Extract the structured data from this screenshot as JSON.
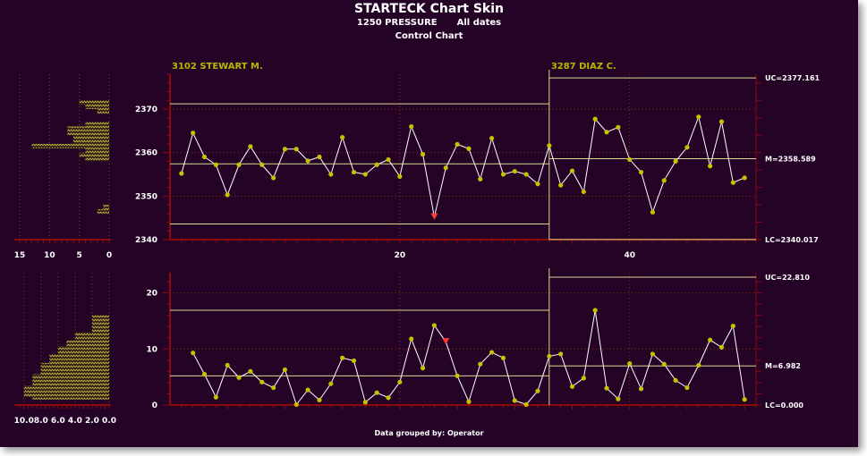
{
  "title": "STARTECK Chart Skin",
  "subtitle_left": "1250 PRESSURE",
  "subtitle_right": "All dates",
  "chart_name": "Control Chart",
  "footer": "Data grouped by: Operator",
  "colors": {
    "background": "#240326",
    "data_line": "#ffffff",
    "data_point": "#c8c000",
    "limit_line": "#d8d890",
    "axis": "#8b0a0a",
    "grid": "#8b3a0a",
    "label_text": "#ffffff",
    "group_label": "#b8b800",
    "alarm": "#ff3b3b"
  },
  "chart_data": [
    {
      "type": "line",
      "name": "X chart",
      "groups": [
        {
          "label": "3102 STEWART M.",
          "start": 1,
          "end": 33,
          "ucl": 2371.2,
          "center": 2357.4,
          "lcl": 2343.6
        },
        {
          "label": "3287 DIAZ C.",
          "start": 33,
          "end": 50,
          "ucl": 2377.161,
          "center": 2358.589,
          "lcl": 2340.017
        }
      ],
      "x": [
        1,
        2,
        3,
        4,
        5,
        6,
        7,
        8,
        9,
        10,
        11,
        12,
        13,
        14,
        15,
        16,
        17,
        18,
        19,
        20,
        21,
        22,
        23,
        24,
        25,
        26,
        27,
        28,
        29,
        30,
        31,
        32,
        33,
        34,
        35,
        36,
        37,
        38,
        39,
        40,
        41,
        42,
        43,
        44,
        45,
        46,
        47,
        48,
        49,
        50
      ],
      "values": [
        2355.2,
        2364.5,
        2359.0,
        2357.2,
        2350.3,
        2357.2,
        2361.4,
        2357.2,
        2354.2,
        2360.8,
        2360.8,
        2358.1,
        2359.0,
        2355.0,
        2363.5,
        2355.5,
        2355.0,
        2357.2,
        2358.4,
        2354.5,
        2366.0,
        2359.6,
        2345.2,
        2356.5,
        2361.9,
        2360.9,
        2353.9,
        2363.3,
        2355.0,
        2355.7,
        2355.0,
        2352.8,
        2361.6,
        2352.5,
        2355.8,
        2351.0,
        2367.7,
        2364.7,
        2365.8,
        2358.4,
        2355.5,
        2346.3,
        2353.6,
        2358.0,
        2361.2,
        2368.2,
        2356.9,
        2367.1,
        2353.1,
        2354.2
      ],
      "alarms": [
        23
      ],
      "ylim": [
        2340,
        2378
      ],
      "xlim": [
        0,
        51
      ],
      "yticks": [
        2340,
        2350,
        2360,
        2370
      ],
      "xticks": [
        20,
        40
      ],
      "right_labels": [
        "UC=2377.161",
        "M=2358.589",
        "LC=2340.017"
      ],
      "histogram": {
        "bin_min": 2346,
        "bin_max": 2372,
        "counts": [
          2,
          1,
          0,
          0,
          0,
          0,
          0,
          0,
          0,
          0,
          0,
          0,
          4,
          5,
          4,
          13,
          6,
          6,
          7,
          7,
          4,
          0,
          0,
          2,
          4,
          5
        ],
        "xlim": [
          0,
          15
        ],
        "xticks": [
          15,
          10,
          5,
          0
        ]
      }
    },
    {
      "type": "line",
      "name": "MR chart",
      "groups": [
        {
          "label": "",
          "start": 1,
          "end": 33,
          "ucl": 16.9,
          "center": 5.2,
          "lcl": 0
        },
        {
          "label": "",
          "start": 33,
          "end": 50,
          "ucl": 22.81,
          "center": 6.982,
          "lcl": 0
        }
      ],
      "x": [
        2,
        3,
        4,
        5,
        6,
        7,
        8,
        9,
        10,
        11,
        12,
        13,
        14,
        15,
        16,
        17,
        18,
        19,
        20,
        21,
        22,
        23,
        24,
        25,
        26,
        27,
        28,
        29,
        30,
        31,
        32,
        33,
        34,
        35,
        36,
        37,
        38,
        39,
        40,
        41,
        42,
        43,
        44,
        45,
        46,
        47,
        48,
        49,
        50
      ],
      "values": [
        9.3,
        5.5,
        1.4,
        7.1,
        4.9,
        6.0,
        4.1,
        3.1,
        6.3,
        0.1,
        2.7,
        0.9,
        3.8,
        8.4,
        7.9,
        0.5,
        2.2,
        1.3,
        4.1,
        11.8,
        6.6,
        14.2,
        11.3,
        5.2,
        0.6,
        7.3,
        9.4,
        8.4,
        0.8,
        0.1,
        2.5,
        8.7,
        9.1,
        3.3,
        4.8,
        16.9,
        3.0,
        1.1,
        7.4,
        2.9,
        9.1,
        7.3,
        4.4,
        3.1,
        7.1,
        11.6,
        10.3,
        14.1,
        1.0
      ],
      "alarms": [
        24
      ],
      "ylim": [
        0,
        23.6
      ],
      "xlim": [
        0,
        51
      ],
      "yticks": [
        0,
        10,
        20
      ],
      "right_labels": [
        "UC=22.810",
        "M=6.982",
        "LC=0.000"
      ],
      "histogram": {
        "bin_min": 0,
        "bin_max": 17.5,
        "bin_width": 0.5,
        "counts": [
          0,
          0,
          9,
          10,
          10,
          10,
          10,
          9,
          9,
          9,
          9,
          8,
          8,
          8,
          8,
          7,
          7,
          7,
          6,
          6,
          6,
          5,
          5,
          4,
          4,
          4,
          2,
          2,
          2,
          2,
          2,
          2,
          0,
          0,
          0
        ],
        "xlim": [
          0,
          10.5
        ],
        "xticks": [
          10,
          8,
          6,
          4,
          2,
          0
        ],
        "xtick_labels": [
          "10.0",
          "8.0",
          "6.0",
          "4.0",
          "2.0",
          "0.0"
        ]
      }
    }
  ]
}
